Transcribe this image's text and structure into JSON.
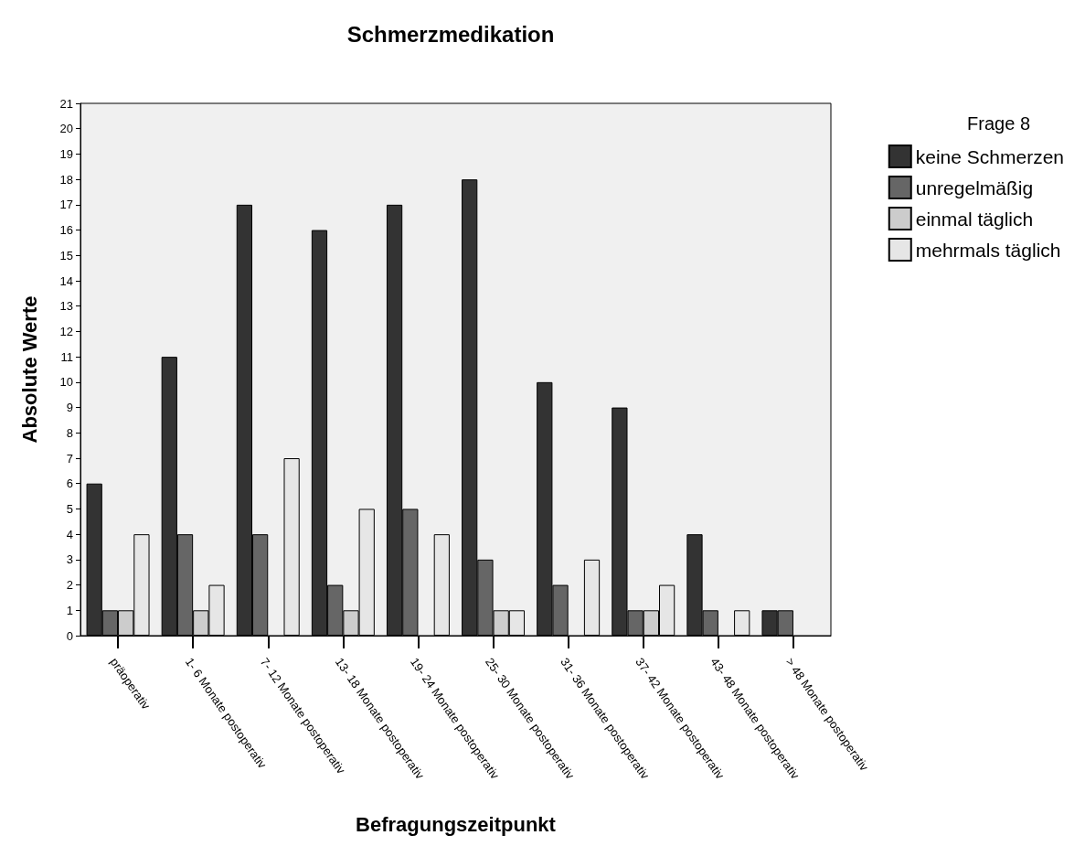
{
  "chart_data": {
    "type": "bar",
    "title": "Schmerzmedikation",
    "xlabel": "Befragungszeitpunkt",
    "ylabel": "Absolute Werte",
    "legend_title": "Frage 8",
    "legend": "top right",
    "grid": false,
    "categories": [
      "präoperativ",
      "1- 6 Monate postoperativ",
      "7- 12 Monate postoperativ",
      "13- 18 Monate postoperativ",
      "19- 24 Monate postoperativ",
      "25- 30 Monate postoperativ",
      "31- 36 Monate postoperativ",
      "37- 42 Monate postoperativ",
      "43- 48 Monate postoperativ",
      "> 48 Monate postoperativ"
    ],
    "series": [
      {
        "name": "keine Schmerzen",
        "color": "#333333",
        "values": [
          6,
          11,
          17,
          16,
          17,
          18,
          10,
          9,
          4,
          1
        ]
      },
      {
        "name": "unregelmäßig",
        "color": "#666666",
        "values": [
          1,
          4,
          4,
          2,
          5,
          3,
          2,
          1,
          1,
          1
        ]
      },
      {
        "name": "einmal täglich",
        "color": "#cccccc",
        "values": [
          1,
          1,
          0,
          1,
          0,
          1,
          0,
          1,
          0,
          0
        ]
      },
      {
        "name": "mehrmals täglich",
        "color": "#e6e6e6",
        "values": [
          4,
          2,
          7,
          5,
          4,
          1,
          3,
          2,
          1,
          0
        ]
      }
    ],
    "ylim": [
      0,
      21
    ],
    "yticks": [
      0,
      1,
      2,
      3,
      4,
      5,
      6,
      7,
      8,
      9,
      10,
      11,
      12,
      13,
      14,
      15,
      16,
      17,
      18,
      19,
      20,
      21
    ]
  }
}
